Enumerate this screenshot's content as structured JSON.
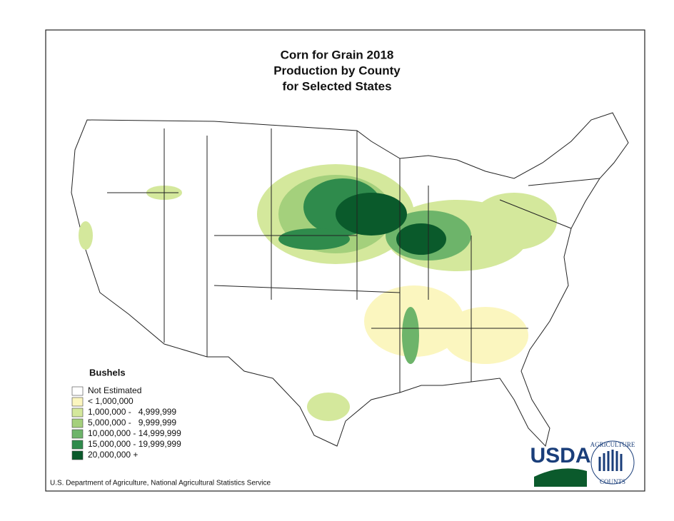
{
  "title": [
    "Corn for Grain 2018",
    "Production by County",
    "for Selected States"
  ],
  "legend": {
    "title": "Bushels",
    "items": [
      {
        "label": "Not Estimated",
        "color": "#ffffff"
      },
      {
        "label": "< 1,000,000",
        "color": "#fbf6bf"
      },
      {
        "label": "1,000,000 -   4,999,999",
        "color": "#d4e89c"
      },
      {
        "label": "5,000,000 -   9,999,999",
        "color": "#a4d07c"
      },
      {
        "label": "10,000,000 - 14,999,999",
        "color": "#6db46a"
      },
      {
        "label": "15,000,000 - 19,999,999",
        "color": "#2f8b4c"
      },
      {
        "label": "20,000,000 +",
        "color": "#0a5a2b"
      }
    ]
  },
  "footer": "U.S. Department of Agriculture, National Agricultural Statistics Service",
  "logo": {
    "name": "USDA",
    "motto": [
      "AGRICULTURE",
      "COUNTS"
    ]
  }
}
